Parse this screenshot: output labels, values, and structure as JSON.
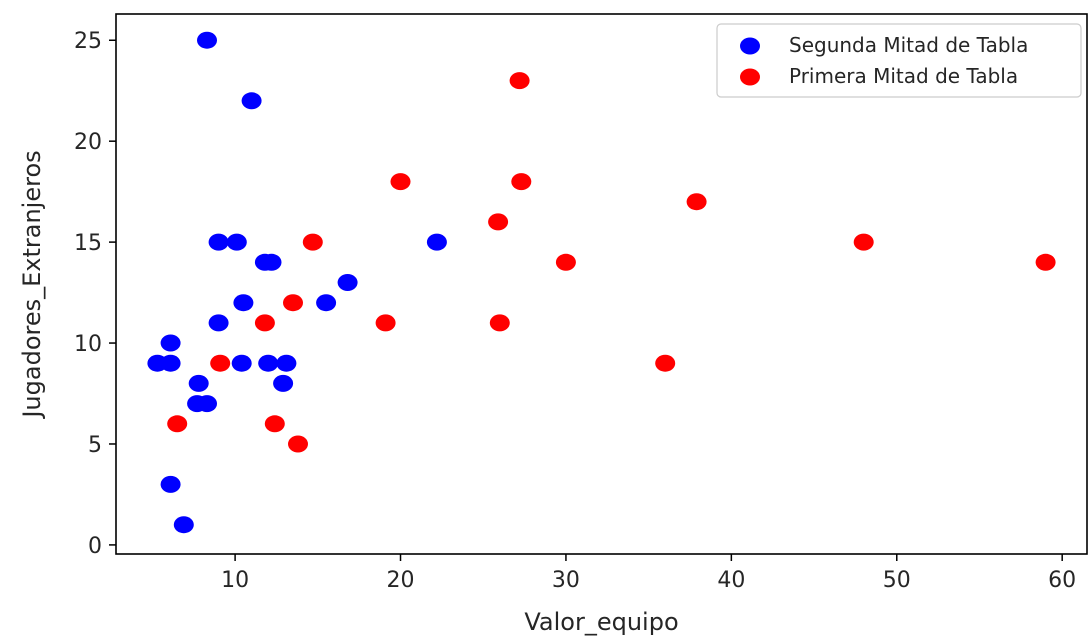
{
  "chart_data": {
    "type": "scatter",
    "xlabel": "Valor_equipo",
    "ylabel": "Jugadores_Extranjeros",
    "xlim": [
      2.8,
      61.5
    ],
    "ylim": [
      -0.45,
      26.3
    ],
    "x_ticks": [
      10,
      20,
      30,
      40,
      50,
      60
    ],
    "y_ticks": [
      0,
      5,
      10,
      15,
      20,
      25
    ],
    "legend_position": "top-right",
    "series": [
      {
        "name": "Segunda Mitad de Tabla",
        "color": "#0000ff",
        "points": [
          {
            "x": 8.3,
            "y": 25
          },
          {
            "x": 11.0,
            "y": 22
          },
          {
            "x": 22.2,
            "y": 15
          },
          {
            "x": 9.0,
            "y": 15
          },
          {
            "x": 10.1,
            "y": 15
          },
          {
            "x": 11.8,
            "y": 14
          },
          {
            "x": 12.2,
            "y": 14
          },
          {
            "x": 16.8,
            "y": 13
          },
          {
            "x": 10.5,
            "y": 12
          },
          {
            "x": 15.5,
            "y": 12
          },
          {
            "x": 9.0,
            "y": 11
          },
          {
            "x": 6.1,
            "y": 10
          },
          {
            "x": 5.3,
            "y": 9
          },
          {
            "x": 6.1,
            "y": 9
          },
          {
            "x": 10.4,
            "y": 9
          },
          {
            "x": 12.0,
            "y": 9
          },
          {
            "x": 13.1,
            "y": 9
          },
          {
            "x": 7.8,
            "y": 8
          },
          {
            "x": 12.9,
            "y": 8
          },
          {
            "x": 7.7,
            "y": 7
          },
          {
            "x": 8.3,
            "y": 7
          },
          {
            "x": 6.1,
            "y": 3
          },
          {
            "x": 6.9,
            "y": 1
          }
        ]
      },
      {
        "name": "Primera Mitad de Tabla",
        "color": "#ff0000",
        "points": [
          {
            "x": 27.2,
            "y": 23
          },
          {
            "x": 20.0,
            "y": 18
          },
          {
            "x": 27.3,
            "y": 18
          },
          {
            "x": 37.9,
            "y": 17
          },
          {
            "x": 25.9,
            "y": 16
          },
          {
            "x": 14.7,
            "y": 15
          },
          {
            "x": 48.0,
            "y": 15
          },
          {
            "x": 30.0,
            "y": 14
          },
          {
            "x": 59.0,
            "y": 14
          },
          {
            "x": 13.5,
            "y": 12
          },
          {
            "x": 11.8,
            "y": 11
          },
          {
            "x": 19.1,
            "y": 11
          },
          {
            "x": 26.0,
            "y": 11
          },
          {
            "x": 9.1,
            "y": 9
          },
          {
            "x": 36.0,
            "y": 9
          },
          {
            "x": 6.5,
            "y": 6
          },
          {
            "x": 12.4,
            "y": 6
          },
          {
            "x": 13.8,
            "y": 5
          }
        ]
      }
    ]
  }
}
